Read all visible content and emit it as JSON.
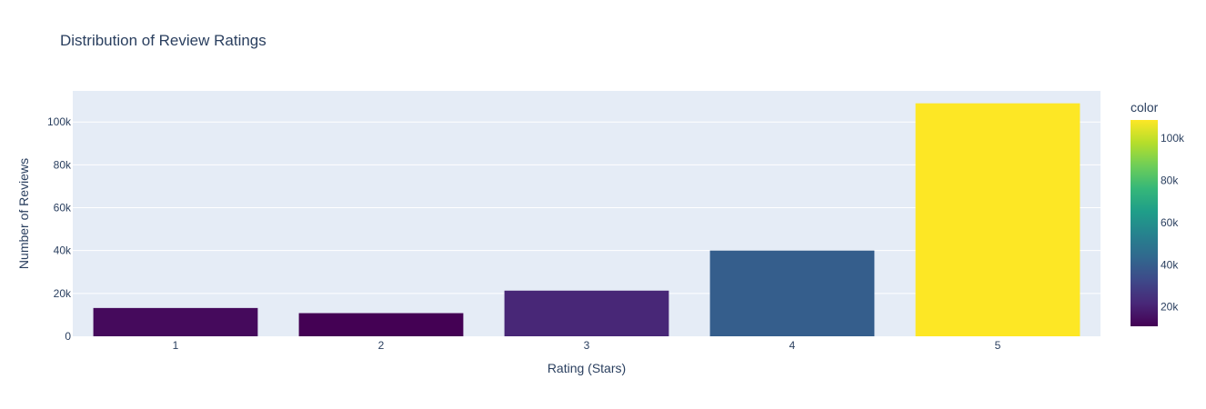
{
  "chart_data": {
    "type": "bar",
    "title": "Distribution of Review Ratings",
    "xlabel": "Rating (Stars)",
    "ylabel": "Number of Reviews",
    "categories": [
      "1",
      "2",
      "3",
      "4",
      "5"
    ],
    "values": [
      13200,
      10800,
      21300,
      40000,
      108700
    ],
    "ylim": [
      0,
      114500
    ],
    "y_ticks": [
      0,
      20000,
      40000,
      60000,
      80000,
      100000
    ],
    "y_tick_labels": [
      "0",
      "20k",
      "40k",
      "60k",
      "80k",
      "100k"
    ],
    "grid": true,
    "colorbar": {
      "title": "color",
      "range": [
        10800,
        108700
      ],
      "ticks": [
        20000,
        40000,
        60000,
        80000,
        100000
      ],
      "tick_labels": [
        "20k",
        "40k",
        "60k",
        "80k",
        "100k"
      ],
      "colorscale": "viridis",
      "colors": [
        "#440154",
        "#482878",
        "#3e4989",
        "#31688e",
        "#26828e",
        "#1f9e89",
        "#35b779",
        "#6ece58",
        "#b5de2b",
        "#fde725"
      ]
    },
    "colors": {
      "plot_background": "#e5ecf6",
      "grid": "#ffffff",
      "text": "#2a3f5f"
    }
  }
}
